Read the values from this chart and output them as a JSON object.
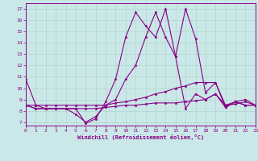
{
  "xlabel": "Windchill (Refroidissement éolien,°C)",
  "background_color": "#cbe8e8",
  "grid_color": "#b0d4cc",
  "line_color": "#880088",
  "x": [
    0,
    1,
    2,
    3,
    4,
    5,
    6,
    7,
    8,
    9,
    10,
    11,
    12,
    13,
    14,
    15,
    16,
    17,
    18,
    19,
    20,
    21,
    22,
    23
  ],
  "lines": [
    [
      10.8,
      8.5,
      8.2,
      8.2,
      8.2,
      8.2,
      6.9,
      7.3,
      8.8,
      10.8,
      14.5,
      16.7,
      15.5,
      14.5,
      17.0,
      12.8,
      17.0,
      14.4,
      9.6,
      10.5,
      8.3,
      8.8,
      8.5,
      8.5
    ],
    [
      8.5,
      8.2,
      8.2,
      8.2,
      8.2,
      7.7,
      7.0,
      7.5,
      8.5,
      9.0,
      10.8,
      12.0,
      14.5,
      16.7,
      14.5,
      12.8,
      8.2,
      9.5,
      9.0,
      9.5,
      8.3,
      8.8,
      8.5,
      8.5
    ],
    [
      8.5,
      8.2,
      8.2,
      8.2,
      8.2,
      8.2,
      8.2,
      8.2,
      8.3,
      8.4,
      8.5,
      8.5,
      8.6,
      8.7,
      8.7,
      8.7,
      8.8,
      8.9,
      9.0,
      9.5,
      8.5,
      8.6,
      8.8,
      8.5
    ],
    [
      8.5,
      8.5,
      8.5,
      8.5,
      8.5,
      8.5,
      8.5,
      8.5,
      8.5,
      8.7,
      8.8,
      9.0,
      9.2,
      9.5,
      9.7,
      10.0,
      10.2,
      10.5,
      10.5,
      10.5,
      8.5,
      8.8,
      9.0,
      8.5
    ]
  ],
  "xlim": [
    0,
    23
  ],
  "ylim": [
    6.7,
    17.5
  ],
  "yticks": [
    7,
    8,
    9,
    10,
    11,
    12,
    13,
    14,
    15,
    16,
    17
  ],
  "xticks": [
    0,
    1,
    2,
    3,
    4,
    5,
    6,
    7,
    8,
    9,
    10,
    11,
    12,
    13,
    14,
    15,
    16,
    17,
    18,
    19,
    20,
    21,
    22,
    23
  ]
}
